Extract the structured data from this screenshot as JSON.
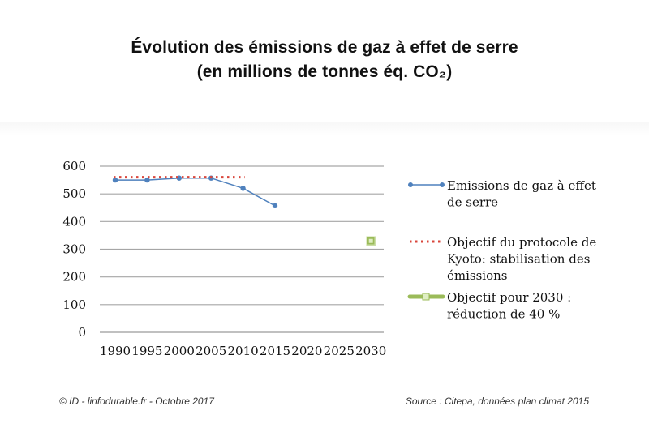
{
  "title_line1": "Évolution des émissions de gaz à effet de serre",
  "title_line2": "(en millions de tonnes éq. CO₂)",
  "footer_left": "© ID - linfodurable.fr - Octobre 2017",
  "footer_right": "Source : Citepa, données plan climat 2015",
  "chart_data": {
    "type": "line",
    "categories": [
      "1990",
      "1995",
      "2000",
      "2005",
      "2010",
      "2015",
      "2020",
      "2025",
      "2030"
    ],
    "ylim": [
      0,
      600
    ],
    "yticks": [
      0,
      100,
      200,
      300,
      400,
      500,
      600
    ],
    "grid": "horizontal",
    "legend_position": "right",
    "series": [
      {
        "name": "Emissions de gaz à effet de serre",
        "legend_lines": [
          "Emissions de gaz à effet",
          "de serre"
        ],
        "style": "line-marker",
        "color": "#4f81bd",
        "values": [
          550,
          550,
          557,
          557,
          520,
          457,
          null,
          null,
          null
        ]
      },
      {
        "name": "Objectif du protocole de Kyoto: stabilisation des émissions",
        "legend_lines": [
          "Objectif du protocole de",
          "Kyoto: stabilisation des",
          "émissions"
        ],
        "style": "dotted",
        "color": "#d9463b",
        "values": [
          560,
          560,
          560,
          560,
          560,
          null,
          null,
          null,
          null
        ]
      },
      {
        "name": "Objectif pour 2030 : réduction de 40 %",
        "legend_lines": [
          "Objectif pour 2030 :",
          "réduction de 40 %"
        ],
        "style": "square-marker",
        "color": "#9bbb59",
        "values": [
          null,
          null,
          null,
          null,
          null,
          null,
          null,
          null,
          330
        ]
      }
    ]
  }
}
